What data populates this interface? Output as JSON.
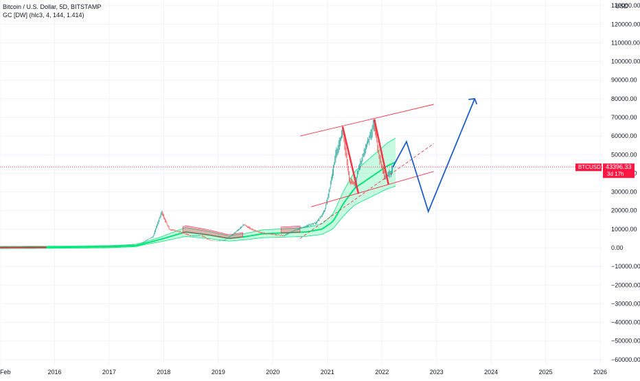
{
  "header": {
    "symbol_line": "Bitcoin / U.S. Dollar, 5D, BITSTAMP",
    "indicator_line": "GC [DW] (hlc3, 4, 144, 1.414)"
  },
  "axis": {
    "currency": "USD",
    "price_label": "BTCUSD",
    "price_value": "43396.33",
    "countdown": "3d 17h"
  },
  "colors": {
    "grid": "#f0f3fa",
    "axis_text": "#131722",
    "price_tag": "#ff1744",
    "candle_up": "#26a69a",
    "candle_down": "#ef5350",
    "band_up": "#00e676",
    "band_down": "#ff1744",
    "channel": "#f23645",
    "projection": "#1e5ec9"
  },
  "chart_data": {
    "type": "line",
    "title": "Bitcoin / U.S. Dollar, 5D, BITSTAMP",
    "xlabel": "",
    "ylabel": "USD",
    "x_ticks": [
      "Feb",
      "2016",
      "2017",
      "2018",
      "2019",
      "2020",
      "2021",
      "2022",
      "2023",
      "2024",
      "2025",
      "2026"
    ],
    "y_ticks": [
      -60000,
      -50000,
      -40000,
      -30000,
      -20000,
      -10000,
      0,
      10000,
      20000,
      30000,
      40000,
      50000,
      60000,
      70000,
      80000,
      90000,
      100000,
      110000,
      120000,
      130000
    ],
    "y_tick_labels": [
      "−60000.00",
      "−50000.00",
      "−40000.00",
      "−30000.00",
      "−20000.00",
      "−10000.00",
      "0.00",
      "10000.00",
      "20000.00",
      "30000.00",
      "40000.00",
      "50000.00",
      "60000.00",
      "70000.00",
      "80000.00",
      "90000.00",
      "100000.00",
      "110000.00",
      "120000.00",
      "130000.00"
    ],
    "ylim": [
      -63000,
      133000
    ],
    "xlim": [
      2015.0,
      2026.05
    ],
    "grid": true,
    "last_price": 43396.33,
    "series": [
      {
        "name": "BTCUSD",
        "x": [
          2015.0,
          2015.5,
          2016.0,
          2016.5,
          2017.0,
          2017.3,
          2017.6,
          2017.8,
          2017.96,
          2018.1,
          2018.3,
          2018.5,
          2018.7,
          2018.85,
          2018.95,
          2019.1,
          2019.3,
          2019.47,
          2019.6,
          2019.8,
          2020.0,
          2020.2,
          2020.4,
          2020.6,
          2020.8,
          2020.95,
          2021.05,
          2021.15,
          2021.28,
          2021.4,
          2021.5,
          2021.6,
          2021.75,
          2021.86,
          2021.95,
          2022.05,
          2022.15,
          2022.2
        ],
        "values": [
          250,
          250,
          430,
          650,
          1000,
          1300,
          2800,
          6000,
          19000,
          10000,
          8500,
          6500,
          6500,
          4000,
          3700,
          3800,
          8000,
          12500,
          10000,
          8000,
          7200,
          6500,
          9500,
          11500,
          13500,
          20000,
          33000,
          50000,
          63000,
          36000,
          34000,
          45000,
          58000,
          67000,
          48000,
          38000,
          40000,
          43396
        ]
      },
      {
        "name": "GC band",
        "x": [
          2015.0,
          2016.0,
          2017.0,
          2017.5,
          2018.0,
          2018.4,
          2018.8,
          2019.2,
          2019.5,
          2019.8,
          2020.2,
          2020.6,
          2020.9,
          2021.1,
          2021.3,
          2021.5,
          2021.7,
          2021.9,
          2022.1,
          2022.25
        ],
        "values": [
          200,
          300,
          600,
          1200,
          5000,
          8500,
          7000,
          5000,
          6000,
          7500,
          8000,
          8500,
          10000,
          14000,
          24000,
          32000,
          36000,
          40000,
          44000,
          46000
        ]
      }
    ],
    "projection": {
      "x": [
        2022.2,
        2022.45,
        2022.85,
        2023.7
      ],
      "values": [
        43396,
        57000,
        19500,
        80000
      ]
    },
    "channel": {
      "upper": {
        "x": [
          2020.5,
          2022.95
        ],
        "values": [
          60000,
          77000
        ]
      },
      "lower": {
        "x": [
          2020.7,
          2022.95
        ],
        "values": [
          22000,
          41000
        ]
      },
      "middle": {
        "x": [
          2020.5,
          2022.95
        ],
        "values": [
          5000,
          56000
        ]
      }
    }
  }
}
